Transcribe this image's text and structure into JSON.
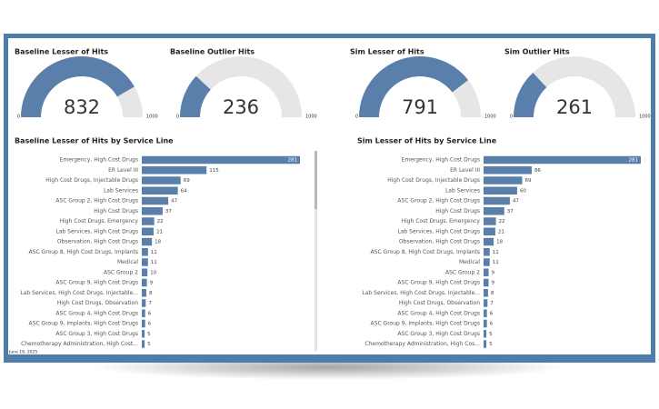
{
  "chart_data": [
    {
      "type": "gauge",
      "title": "Baseline Lesser of Hits",
      "value": 832,
      "ylim": [
        0,
        1000
      ],
      "color": "#5a7fab",
      "track_color": "#e6e6e6"
    },
    {
      "type": "gauge",
      "title": "Baseline Outlier Hits",
      "value": 236,
      "ylim": [
        0,
        1000
      ],
      "color": "#5a7fab",
      "track_color": "#e6e6e6"
    },
    {
      "type": "gauge",
      "title": "Sim Lesser of Hits",
      "value": 791,
      "ylim": [
        0,
        1000
      ],
      "color": "#5a7fab",
      "track_color": "#e6e6e6"
    },
    {
      "type": "gauge",
      "title": "Sim Outlier Hits",
      "value": 261,
      "ylim": [
        0,
        1000
      ],
      "color": "#5a7fab",
      "track_color": "#e6e6e6"
    },
    {
      "type": "hbar",
      "title": "Baseline Lesser of Hits by Service Line",
      "color": "#5a7fab",
      "categories": [
        "Emergency, High Cost Drugs",
        "ER Level III",
        "High Cost Drugs, Injectable Drugs",
        "Lab Services",
        "ASC Group 2, High Cost Drugs",
        "High Cost Drugs",
        "High Cost Drugs, Emergency",
        "Lab Services, High Cost Drugs",
        "Observation, High Cost Drugs",
        "ASC Group 8, High Cost Drugs, Implants",
        "Medical",
        "ASC Group 2",
        "ASC Group 9, High Cost Drugs",
        "Lab Services, High Cost Drugs, Injectable...",
        "High Cost Drugs, Observation",
        "ASC Group 4, High Cost Drugs",
        "ASC Group 9, Implants, High Cost Drugs",
        "ASC Group 3, High Cost Drugs",
        "Chemotherapy Administration, High Cost..."
      ],
      "values": [
        281,
        115,
        69,
        64,
        47,
        37,
        22,
        21,
        18,
        11,
        11,
        10,
        9,
        8,
        7,
        6,
        6,
        5,
        5
      ]
    },
    {
      "type": "hbar",
      "title": "Sim Lesser of Hits by Service Line",
      "color": "#5a7fab",
      "categories": [
        "Emergency, High Cost Drugs",
        "ER Level III",
        "High Cost Drugs, Injectable Drugs",
        "Lab Services",
        "ASC Group 2, High Cost Drugs",
        "High Cost Drugs",
        "High Cost Drugs, Emergency",
        "Lab Services, High Cost Drugs",
        "Observation, High Cost Drugs",
        "ASC Group 8, High Cost Drugs, Implants",
        "Medical",
        "ASC Group 2",
        "ASC Group 9, High Cost Drugs",
        "Lab Services, High Cost Drugs, Injectable...",
        "High Cost Drugs, Observation",
        "ASC Group 4, High Cost Drugs",
        "ASC Group 9, Implants, High Cost Drugs",
        "ASC Group 3, High Cost Drugs",
        "Chemotherapy Administration, High Cos..."
      ],
      "values": [
        281,
        86,
        69,
        60,
        47,
        37,
        22,
        21,
        18,
        11,
        11,
        9,
        9,
        8,
        7,
        6,
        6,
        5,
        5
      ]
    }
  ],
  "date_stamp": "June 18, 2025"
}
